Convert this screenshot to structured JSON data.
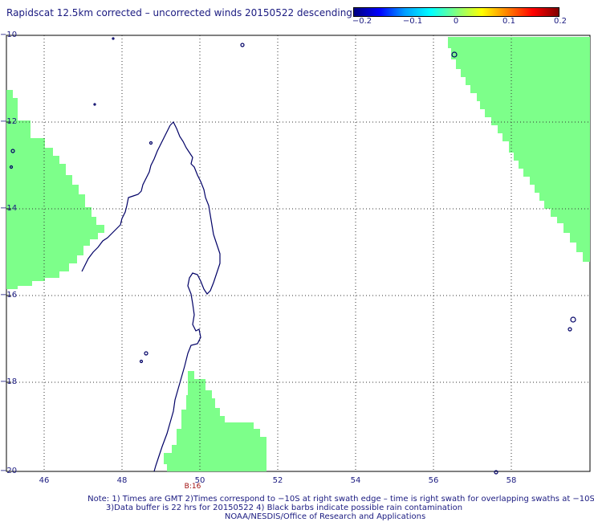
{
  "title": "Rapidscat 12.5km corrected – uncorrected winds 20150522 descending",
  "colorbar": {
    "stops": [
      "#000080",
      "#0000ff",
      "#00a0ff",
      "#00ffff",
      "#80ff80",
      "#ffff00",
      "#ff8000",
      "#ff0000",
      "#800000"
    ],
    "labels": [
      "−0.2",
      "−0.1",
      "0",
      "0.1",
      "0.2"
    ]
  },
  "axes": {
    "lat_labels": [
      "−10",
      "−12",
      "−14",
      "−16",
      "−18",
      "−20"
    ],
    "lon_labels": [
      "46",
      "48",
      "50",
      "52",
      "54",
      "56",
      "58"
    ]
  },
  "swath_color": "#7dff8a",
  "coast_color": "#000066",
  "time_marker": "B:16",
  "notes": [
    "Note: 1) Times are GMT 2)Times correspond to −10S at right swath edge – time is right swath for overlapping swaths at −10S",
    "3)Data buffer is 22 hrs for 20150522 4) Black barbs indicate possible rain contamination",
    "NOAA/NESDIS/Office of Research and Applications"
  ]
}
